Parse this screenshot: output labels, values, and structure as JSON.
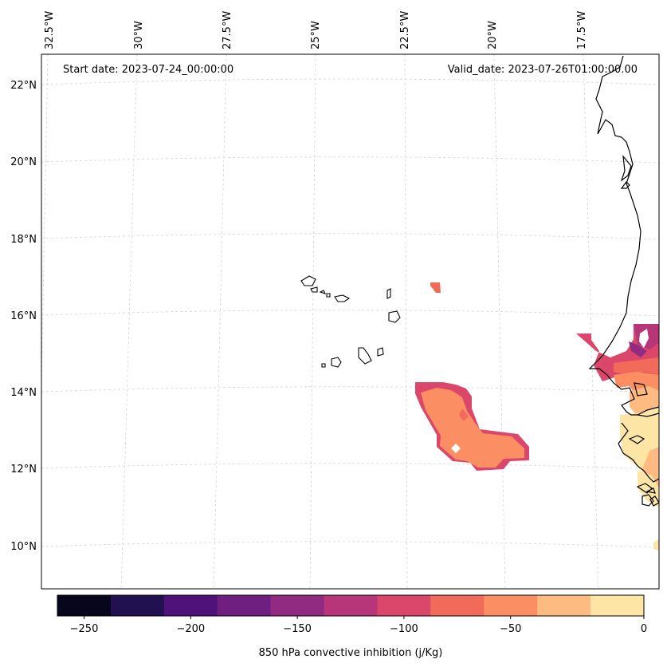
{
  "header": {
    "start_date": "Start date: 2023-07-24_00:00:00",
    "valid_date": "Valid_date: 2023-07-26T01:00:00.00"
  },
  "longitude_labels": [
    "32.5°W",
    "30°W",
    "27.5°W",
    "25°W",
    "22.5°W",
    "20°W",
    "17.5°W"
  ],
  "latitude_labels": [
    "22°N",
    "20°N",
    "18°N",
    "16°N",
    "14°N",
    "12°N",
    "10°N"
  ],
  "colorbar": {
    "label": "850 hPa convective inhibition (j/Kg)",
    "ticks": [
      "−250",
      "−200",
      "−150",
      "−100",
      "−50",
      "0"
    ],
    "colors": [
      "#07061c",
      "#221150",
      "#4f127b",
      "#6f1f80",
      "#912b81",
      "#b63679",
      "#db476a",
      "#f16a5a",
      "#fb8f63",
      "#febb81",
      "#fde5a6"
    ]
  }
}
